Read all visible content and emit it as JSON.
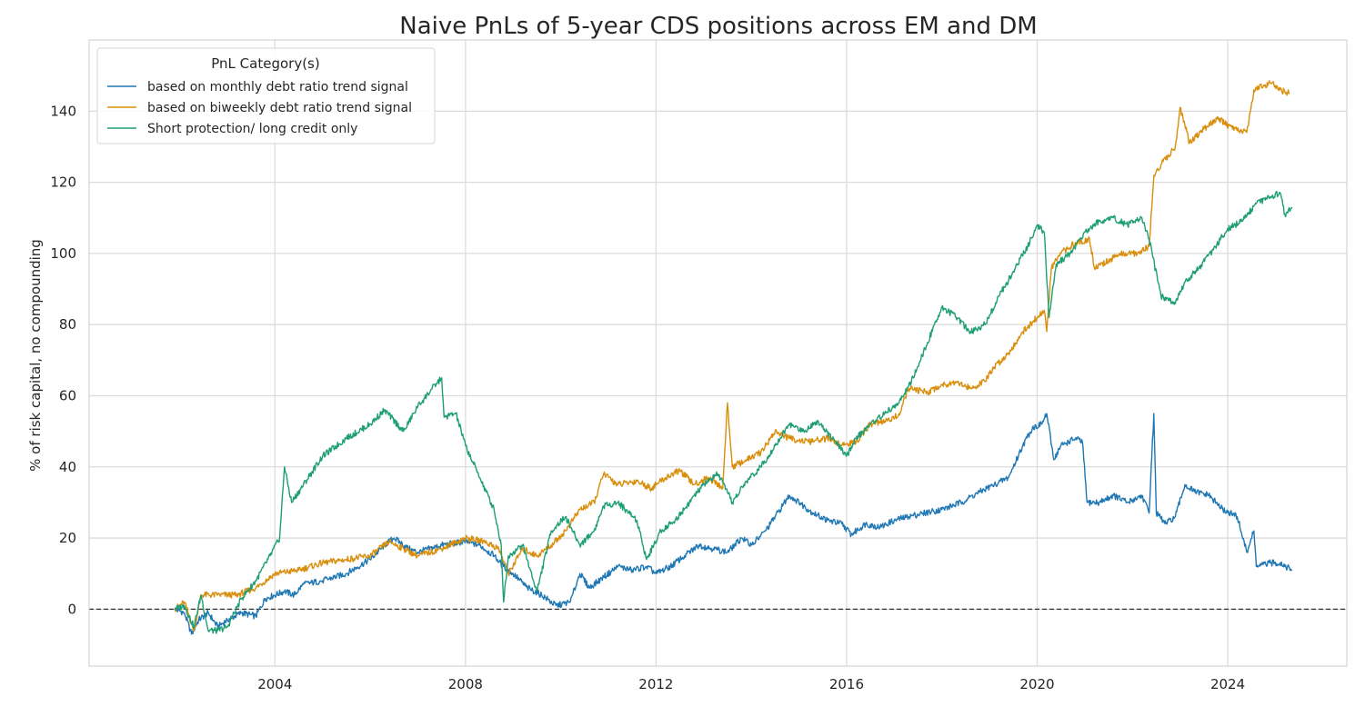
{
  "chart_data": {
    "type": "line",
    "title": "Naive PnLs of 5-year CDS positions across EM and DM",
    "xlabel": "",
    "ylabel": "% of risk capital, no compounding",
    "xlim": [
      2000.1,
      2026.5
    ],
    "ylim": [
      -16,
      160
    ],
    "x_ticks": [
      2004,
      2008,
      2012,
      2016,
      2020,
      2024
    ],
    "x_tick_labels": [
      "2004",
      "2008",
      "2012",
      "2016",
      "2020",
      "2024"
    ],
    "y_ticks": [
      0,
      20,
      40,
      60,
      80,
      100,
      120,
      140
    ],
    "y_tick_labels": [
      "0",
      "20",
      "40",
      "60",
      "80",
      "100",
      "120",
      "140"
    ],
    "grid": true,
    "zero_line": {
      "y": 0,
      "style": "dashed",
      "color": "#333333"
    },
    "legend": {
      "title": "PnL Category(s)",
      "position": "top-left",
      "entries": [
        "based on monthly debt ratio trend signal",
        "based on biweekly debt ratio trend signal",
        "Short protection/ long credit only"
      ]
    },
    "series": [
      {
        "name": "based on monthly debt ratio trend signal",
        "color": "#1f77b4",
        "points": [
          [
            2001.9,
            0
          ],
          [
            2002.1,
            -1
          ],
          [
            2002.25,
            -7
          ],
          [
            2002.4,
            -3
          ],
          [
            2002.6,
            -1
          ],
          [
            2002.8,
            -5
          ],
          [
            2003.0,
            -3
          ],
          [
            2003.3,
            -1
          ],
          [
            2003.6,
            -2
          ],
          [
            2003.8,
            3
          ],
          [
            2004.2,
            5
          ],
          [
            2004.4,
            4
          ],
          [
            2004.6,
            7
          ],
          [
            2005.0,
            8
          ],
          [
            2005.5,
            10
          ],
          [
            2006.0,
            14
          ],
          [
            2006.3,
            18
          ],
          [
            2006.5,
            20
          ],
          [
            2006.8,
            17
          ],
          [
            2007.0,
            16
          ],
          [
            2007.5,
            18
          ],
          [
            2008.0,
            19
          ],
          [
            2008.3,
            18
          ],
          [
            2008.6,
            15
          ],
          [
            2008.8,
            12
          ],
          [
            2009.0,
            10
          ],
          [
            2009.3,
            6
          ],
          [
            2009.6,
            4
          ],
          [
            2009.9,
            1
          ],
          [
            2010.2,
            2
          ],
          [
            2010.4,
            10
          ],
          [
            2010.6,
            6
          ],
          [
            2010.9,
            9
          ],
          [
            2011.2,
            12
          ],
          [
            2011.5,
            11
          ],
          [
            2011.8,
            12
          ],
          [
            2012.0,
            10
          ],
          [
            2012.3,
            12
          ],
          [
            2012.6,
            15
          ],
          [
            2012.9,
            18
          ],
          [
            2013.2,
            17
          ],
          [
            2013.5,
            16
          ],
          [
            2013.8,
            20
          ],
          [
            2014.0,
            18
          ],
          [
            2014.3,
            22
          ],
          [
            2014.5,
            26
          ],
          [
            2014.8,
            32
          ],
          [
            2015.0,
            30
          ],
          [
            2015.3,
            27
          ],
          [
            2015.6,
            25
          ],
          [
            2015.9,
            24
          ],
          [
            2016.1,
            21
          ],
          [
            2016.4,
            24
          ],
          [
            2016.7,
            23
          ],
          [
            2017.0,
            25
          ],
          [
            2017.3,
            26
          ],
          [
            2017.6,
            27
          ],
          [
            2018.0,
            28
          ],
          [
            2018.4,
            30
          ],
          [
            2018.8,
            33
          ],
          [
            2019.1,
            35
          ],
          [
            2019.4,
            37
          ],
          [
            2019.7,
            46
          ],
          [
            2019.9,
            51
          ],
          [
            2020.1,
            52
          ],
          [
            2020.2,
            55
          ],
          [
            2020.35,
            42
          ],
          [
            2020.5,
            46
          ],
          [
            2020.8,
            48
          ],
          [
            2020.95,
            47
          ],
          [
            2021.05,
            30
          ],
          [
            2021.3,
            30
          ],
          [
            2021.6,
            32
          ],
          [
            2021.9,
            30
          ],
          [
            2022.2,
            32
          ],
          [
            2022.35,
            27
          ],
          [
            2022.45,
            55
          ],
          [
            2022.5,
            27
          ],
          [
            2022.7,
            24
          ],
          [
            2022.9,
            26
          ],
          [
            2023.1,
            35
          ],
          [
            2023.3,
            33
          ],
          [
            2023.6,
            32
          ],
          [
            2023.9,
            28
          ],
          [
            2024.2,
            26
          ],
          [
            2024.4,
            16
          ],
          [
            2024.55,
            22
          ],
          [
            2024.6,
            12
          ],
          [
            2024.9,
            13
          ],
          [
            2025.1,
            13
          ],
          [
            2025.35,
            11
          ]
        ]
      },
      {
        "name": "based on biweekly debt ratio trend signal",
        "color": "#d98f0d",
        "points": [
          [
            2001.9,
            0
          ],
          [
            2002.1,
            2
          ],
          [
            2002.3,
            -6
          ],
          [
            2002.45,
            4
          ],
          [
            2002.8,
            4
          ],
          [
            2003.2,
            4
          ],
          [
            2003.6,
            6
          ],
          [
            2004.0,
            10
          ],
          [
            2004.5,
            11
          ],
          [
            2005.0,
            13
          ],
          [
            2005.5,
            14
          ],
          [
            2006.0,
            15
          ],
          [
            2006.4,
            19
          ],
          [
            2006.7,
            17
          ],
          [
            2007.0,
            15
          ],
          [
            2007.5,
            17
          ],
          [
            2008.0,
            20
          ],
          [
            2008.4,
            19
          ],
          [
            2008.7,
            17
          ],
          [
            2008.9,
            10
          ],
          [
            2009.2,
            17
          ],
          [
            2009.5,
            15
          ],
          [
            2009.8,
            18
          ],
          [
            2010.1,
            22
          ],
          [
            2010.4,
            28
          ],
          [
            2010.7,
            30
          ],
          [
            2010.9,
            38
          ],
          [
            2011.2,
            35
          ],
          [
            2011.6,
            36
          ],
          [
            2011.9,
            34
          ],
          [
            2012.2,
            37
          ],
          [
            2012.5,
            39
          ],
          [
            2012.8,
            35
          ],
          [
            2013.1,
            37
          ],
          [
            2013.4,
            34
          ],
          [
            2013.5,
            58
          ],
          [
            2013.6,
            40
          ],
          [
            2013.9,
            42
          ],
          [
            2014.2,
            44
          ],
          [
            2014.5,
            50
          ],
          [
            2014.8,
            48
          ],
          [
            2015.2,
            47
          ],
          [
            2015.6,
            48
          ],
          [
            2015.9,
            46
          ],
          [
            2016.2,
            47
          ],
          [
            2016.5,
            52
          ],
          [
            2016.9,
            53
          ],
          [
            2017.1,
            55
          ],
          [
            2017.3,
            62
          ],
          [
            2017.7,
            61
          ],
          [
            2018.0,
            63
          ],
          [
            2018.3,
            64
          ],
          [
            2018.6,
            62
          ],
          [
            2018.9,
            64
          ],
          [
            2019.1,
            68
          ],
          [
            2019.4,
            72
          ],
          [
            2019.7,
            78
          ],
          [
            2020.0,
            82
          ],
          [
            2020.15,
            84
          ],
          [
            2020.2,
            78
          ],
          [
            2020.3,
            96
          ],
          [
            2020.5,
            100
          ],
          [
            2020.8,
            103
          ],
          [
            2021.1,
            104
          ],
          [
            2021.2,
            96
          ],
          [
            2021.5,
            98
          ],
          [
            2021.8,
            100
          ],
          [
            2022.1,
            100
          ],
          [
            2022.35,
            102
          ],
          [
            2022.45,
            122
          ],
          [
            2022.6,
            125
          ],
          [
            2022.9,
            130
          ],
          [
            2023.0,
            141
          ],
          [
            2023.2,
            131
          ],
          [
            2023.5,
            135
          ],
          [
            2023.8,
            138
          ],
          [
            2024.1,
            135
          ],
          [
            2024.4,
            134
          ],
          [
            2024.55,
            146
          ],
          [
            2024.9,
            148
          ],
          [
            2025.1,
            146
          ],
          [
            2025.3,
            145
          ]
        ]
      },
      {
        "name": "Short protection/ long credit only",
        "color": "#1e9e74",
        "points": [
          [
            2001.9,
            0
          ],
          [
            2002.1,
            1
          ],
          [
            2002.3,
            -5
          ],
          [
            2002.45,
            4
          ],
          [
            2002.6,
            -6
          ],
          [
            2002.8,
            -6
          ],
          [
            2003.0,
            -5
          ],
          [
            2003.3,
            3
          ],
          [
            2003.6,
            8
          ],
          [
            2003.9,
            15
          ],
          [
            2004.1,
            20
          ],
          [
            2004.2,
            40
          ],
          [
            2004.35,
            30
          ],
          [
            2004.6,
            35
          ],
          [
            2005.0,
            43
          ],
          [
            2005.5,
            48
          ],
          [
            2006.0,
            52
          ],
          [
            2006.3,
            56
          ],
          [
            2006.7,
            50
          ],
          [
            2007.0,
            57
          ],
          [
            2007.3,
            62
          ],
          [
            2007.5,
            65
          ],
          [
            2007.55,
            54
          ],
          [
            2007.8,
            55
          ],
          [
            2008.0,
            46
          ],
          [
            2008.3,
            37
          ],
          [
            2008.6,
            28
          ],
          [
            2008.75,
            18
          ],
          [
            2008.8,
            2
          ],
          [
            2008.9,
            15
          ],
          [
            2009.2,
            18
          ],
          [
            2009.5,
            5
          ],
          [
            2009.8,
            22
          ],
          [
            2010.1,
            26
          ],
          [
            2010.4,
            18
          ],
          [
            2010.7,
            22
          ],
          [
            2010.9,
            29
          ],
          [
            2011.2,
            30
          ],
          [
            2011.6,
            25
          ],
          [
            2011.8,
            14
          ],
          [
            2012.1,
            22
          ],
          [
            2012.4,
            25
          ],
          [
            2012.7,
            30
          ],
          [
            2013.0,
            35
          ],
          [
            2013.3,
            38
          ],
          [
            2013.6,
            30
          ],
          [
            2013.9,
            36
          ],
          [
            2014.2,
            40
          ],
          [
            2014.5,
            46
          ],
          [
            2014.8,
            52
          ],
          [
            2015.1,
            50
          ],
          [
            2015.4,
            53
          ],
          [
            2015.7,
            48
          ],
          [
            2016.0,
            43
          ],
          [
            2016.2,
            48
          ],
          [
            2016.5,
            52
          ],
          [
            2016.8,
            55
          ],
          [
            2017.1,
            58
          ],
          [
            2017.4,
            65
          ],
          [
            2017.7,
            75
          ],
          [
            2018.0,
            85
          ],
          [
            2018.3,
            82
          ],
          [
            2018.6,
            78
          ],
          [
            2018.9,
            80
          ],
          [
            2019.2,
            88
          ],
          [
            2019.5,
            95
          ],
          [
            2019.8,
            102
          ],
          [
            2020.0,
            108
          ],
          [
            2020.15,
            106
          ],
          [
            2020.25,
            82
          ],
          [
            2020.4,
            97
          ],
          [
            2020.7,
            100
          ],
          [
            2021.0,
            106
          ],
          [
            2021.3,
            109
          ],
          [
            2021.6,
            110
          ],
          [
            2021.9,
            108
          ],
          [
            2022.2,
            110
          ],
          [
            2022.35,
            104
          ],
          [
            2022.6,
            88
          ],
          [
            2022.9,
            86
          ],
          [
            2023.1,
            92
          ],
          [
            2023.4,
            96
          ],
          [
            2023.7,
            101
          ],
          [
            2024.0,
            107
          ],
          [
            2024.3,
            109
          ],
          [
            2024.6,
            114
          ],
          [
            2024.9,
            116
          ],
          [
            2025.1,
            117
          ],
          [
            2025.2,
            111
          ],
          [
            2025.35,
            113
          ]
        ]
      }
    ]
  }
}
